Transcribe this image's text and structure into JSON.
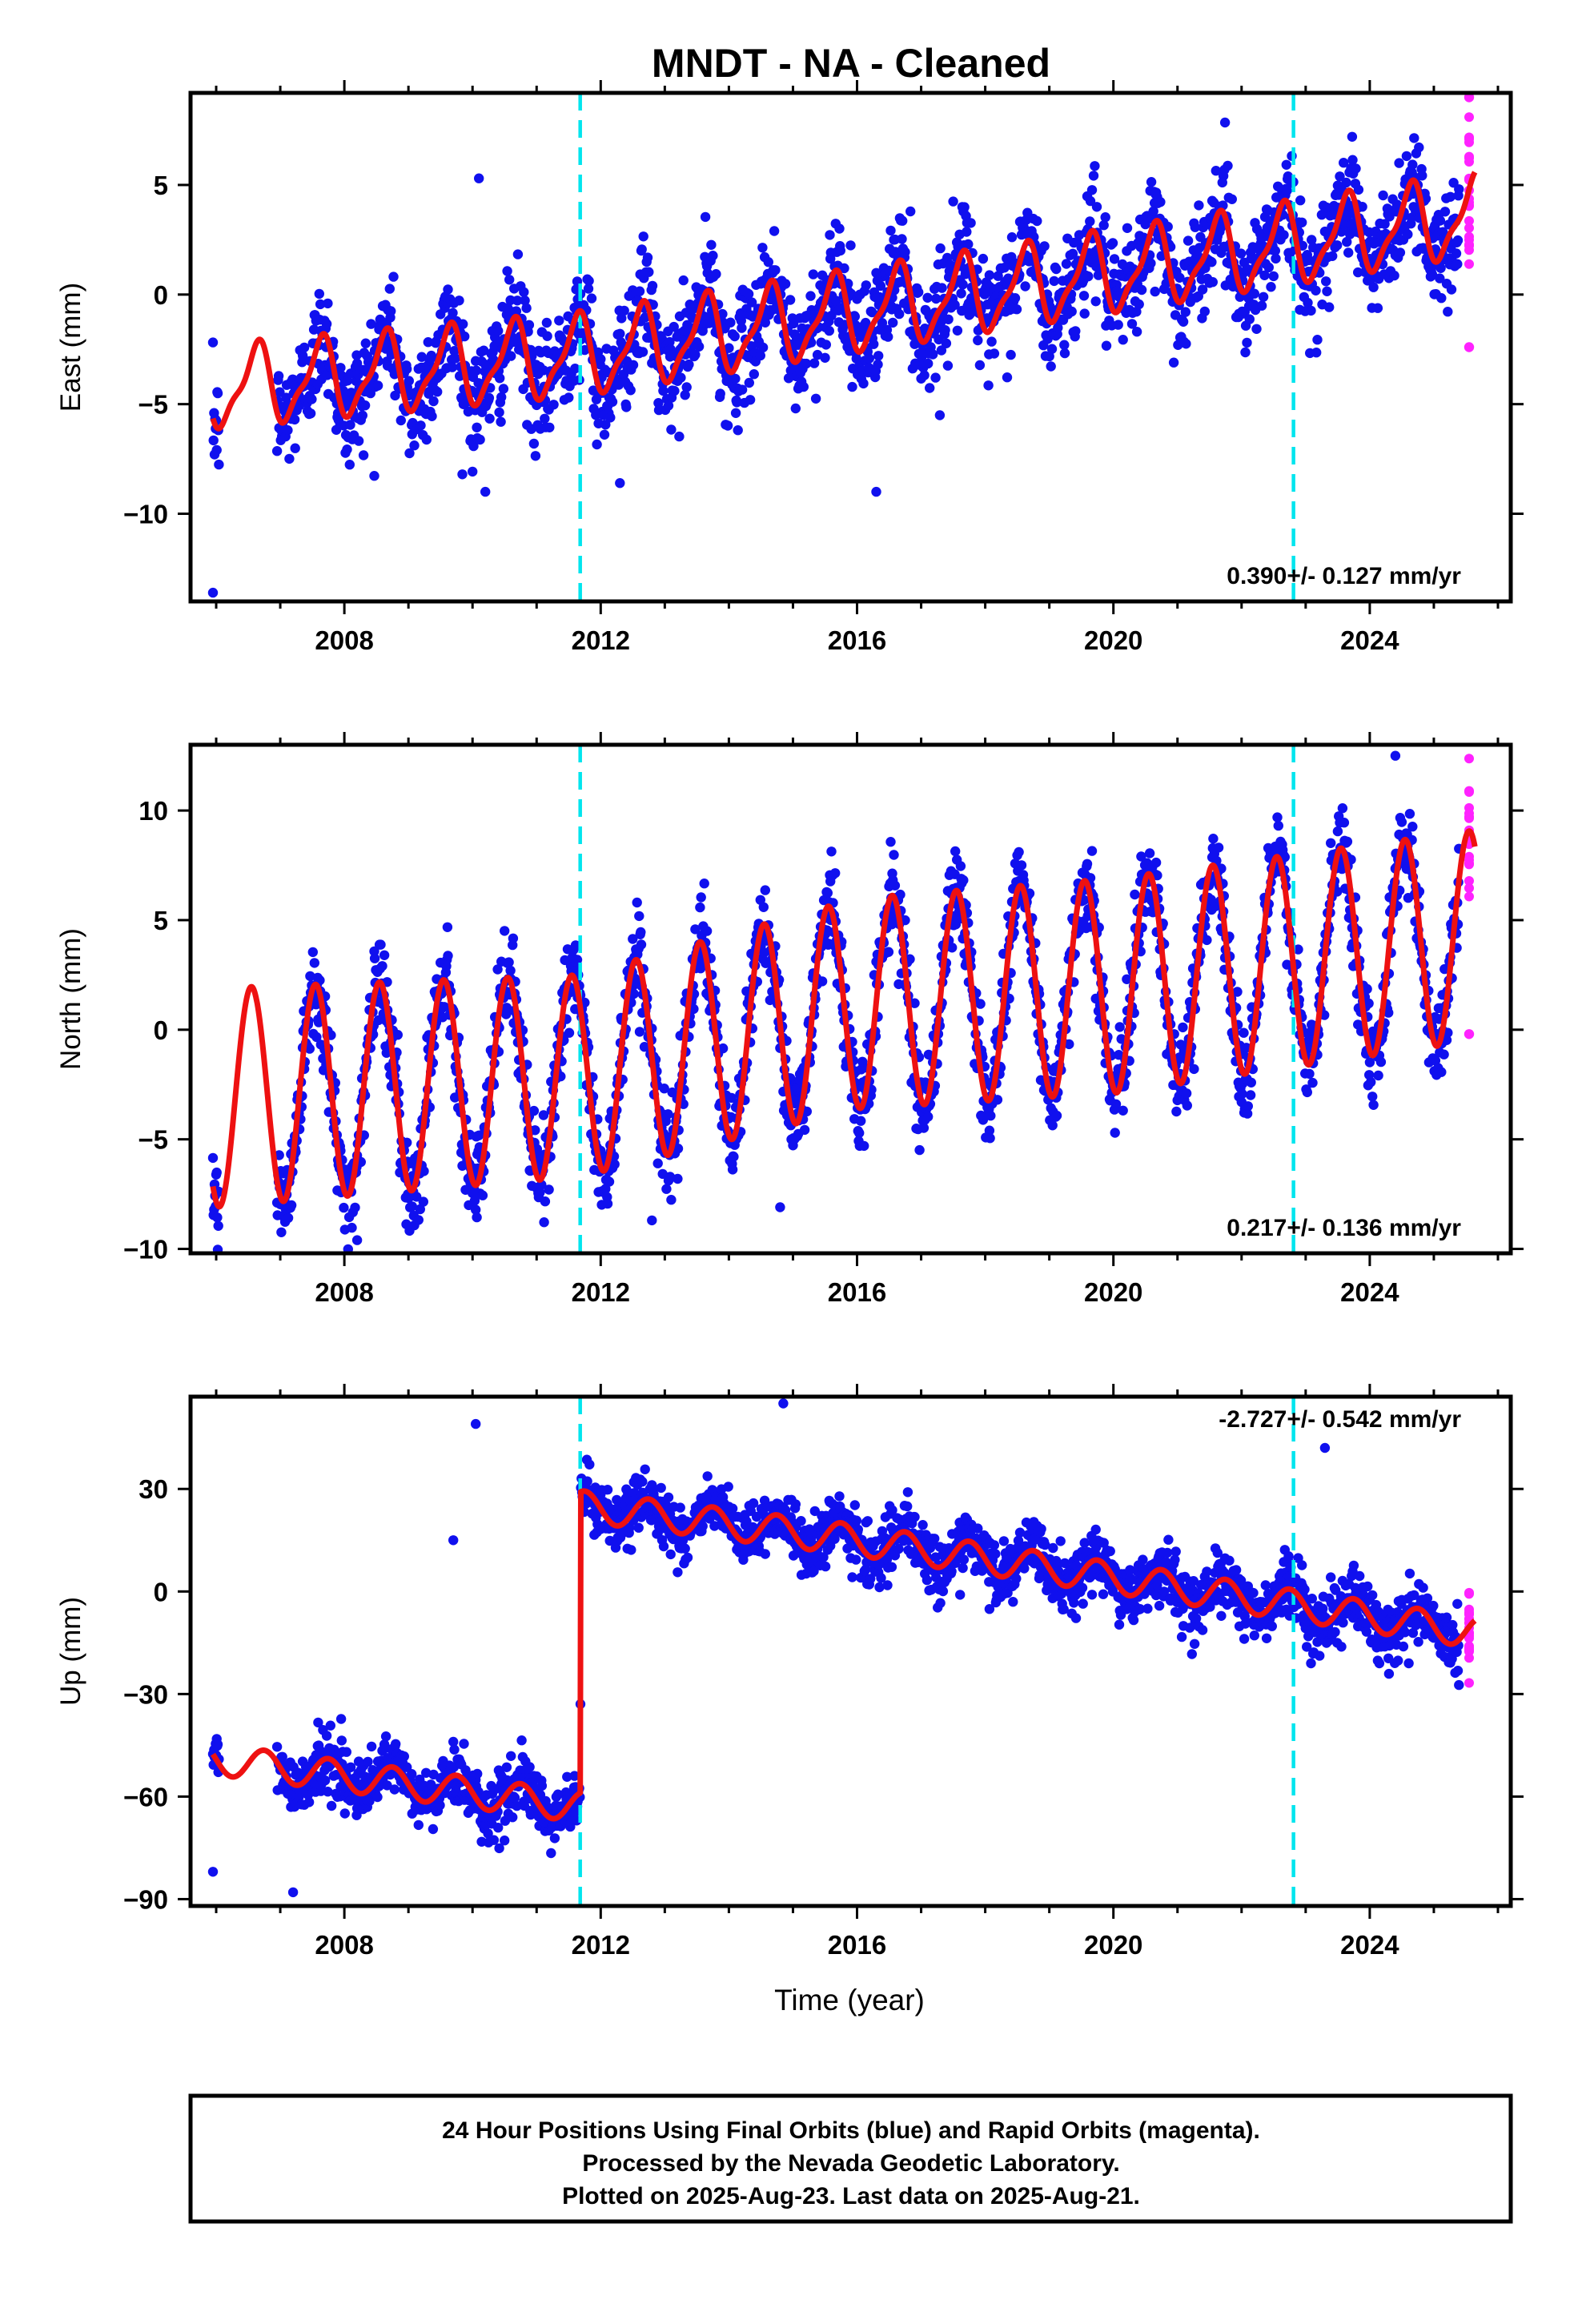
{
  "title": "MNDT  - NA - Cleaned",
  "colors": {
    "final_orbits": "#1010ee",
    "rapid_orbits": "#ff22ff",
    "model": "#ee1111",
    "events": "#00e5ee",
    "frame": "#000000"
  },
  "footer": {
    "line1": "24 Hour Positions Using Final Orbits (blue) and Rapid Orbits (magenta).",
    "line2": "Processed by the Nevada Geodetic Laboratory.",
    "line3": "Plotted on 2025-Aug-23. Last data on 2025-Aug-21."
  },
  "chart_data": [
    {
      "type": "scatter",
      "component": "east",
      "ylabel": "East (mm)",
      "xlabel": "",
      "xlim": [
        2005.6,
        2026.2
      ],
      "ylim": [
        -14,
        9.2
      ],
      "x_ticks": [
        2008,
        2012,
        2016,
        2020,
        2024
      ],
      "x_tick_labels": [
        "2008",
        "2012",
        "2016",
        "2020",
        "2024"
      ],
      "y_ticks": [
        -10,
        -5,
        0,
        5
      ],
      "y_tick_labels": [
        "−10",
        "−5",
        "0",
        "5"
      ],
      "event_lines": [
        2011.68,
        2022.81
      ],
      "rate_label": "0.390+/- 0.127 mm/yr",
      "rate_position": "bottom-right",
      "data_range": [
        2005.95,
        2025.64
      ],
      "rapid_range": [
        2025.4,
        2025.64
      ],
      "model": {
        "velocity_mm_per_yr": 0.39,
        "offset_at_2016": -1.2,
        "annual_amplitude": 1.7,
        "annual_phase_peak": 0.62,
        "semiannual_amplitude": 0.55,
        "trend_kinks": [
          {
            "x": 2005.95,
            "y": -4.3
          },
          {
            "x": 2011.7,
            "y": -2.8
          },
          {
            "x": 2016.0,
            "y": -0.8
          },
          {
            "x": 2020.0,
            "y": 1.0
          },
          {
            "x": 2025.64,
            "y": 3.6
          }
        ]
      },
      "noise_sd": 1.25,
      "outliers": [
        [
          2005.95,
          -13.6
        ],
        [
          2010.1,
          5.3
        ],
        [
          2016.3,
          -9.0
        ],
        [
          2010.2,
          -9.0
        ],
        [
          2012.3,
          -8.6
        ],
        [
          2025.55,
          9.0
        ],
        [
          2025.55,
          -2.4
        ]
      ]
    },
    {
      "type": "scatter",
      "component": "north",
      "ylabel": "North (mm)",
      "xlabel": "",
      "xlim": [
        2005.6,
        2026.2
      ],
      "ylim": [
        -10.2,
        13
      ],
      "x_ticks": [
        2008,
        2012,
        2016,
        2020,
        2024
      ],
      "x_tick_labels": [
        "2008",
        "2012",
        "2016",
        "2020",
        "2024"
      ],
      "y_ticks": [
        -10,
        -5,
        0,
        5,
        10
      ],
      "y_tick_labels": [
        "−10",
        "−5",
        "0",
        "5",
        "10"
      ],
      "event_lines": [
        2011.68,
        2022.81
      ],
      "rate_label": "0.217+/- 0.136 mm/yr",
      "rate_position": "bottom-right",
      "data_range": [
        2005.95,
        2025.64
      ],
      "rapid_range": [
        2025.4,
        2025.64
      ],
      "model": {
        "velocity_mm_per_yr": 0.217,
        "annual_phase_peak": 0.55,
        "semiannual_amplitude": 0.0,
        "trend_kinks": [
          {
            "x": 2005.95,
            "y": -3.1
          },
          {
            "x": 2011.7,
            "y": -2.1
          },
          {
            "x": 2016.0,
            "y": 1.2
          },
          {
            "x": 2020.0,
            "y": 2.0
          },
          {
            "x": 2025.64,
            "y": 4.3
          }
        ],
        "annual_amplitude_segments": [
          {
            "x": 2005.95,
            "a": 5.0
          },
          {
            "x": 2011.7,
            "a": 4.6
          },
          {
            "x": 2016.0,
            "a": 4.8
          },
          {
            "x": 2020.0,
            "a": 4.9
          },
          {
            "x": 2025.64,
            "a": 4.8
          }
        ]
      },
      "noise_sd": 1.05,
      "outliers": [
        [
          2008.2,
          -9.6
        ],
        [
          2012.8,
          -8.7
        ],
        [
          2014.8,
          -8.1
        ],
        [
          2024.4,
          12.5
        ],
        [
          2025.55,
          -0.2
        ]
      ]
    },
    {
      "type": "scatter",
      "component": "up",
      "ylabel": "Up (mm)",
      "xlabel": "Time (year)",
      "xlim": [
        2005.6,
        2026.2
      ],
      "ylim": [
        -92,
        57
      ],
      "x_ticks": [
        2008,
        2012,
        2016,
        2020,
        2024
      ],
      "x_tick_labels": [
        "2008",
        "2012",
        "2016",
        "2020",
        "2024"
      ],
      "y_ticks": [
        -90,
        -60,
        -30,
        0,
        30
      ],
      "y_tick_labels": [
        "−90",
        "−60",
        "−30",
        "0",
        "30"
      ],
      "event_lines": [
        2011.68,
        2022.81
      ],
      "rate_label": "-2.727+/- 0.542 mm/yr",
      "rate_position": "top-right",
      "data_range": [
        2005.95,
        2025.64
      ],
      "rapid_range": [
        2025.4,
        2025.64
      ],
      "model": {
        "velocity_mm_per_yr": -2.727,
        "annual_amplitude": 4.5,
        "annual_phase_peak": 0.75,
        "semiannual_amplitude": 0.0,
        "step": {
          "x": 2011.68,
          "size": 88
        },
        "trend_kinks": [
          {
            "x": 2005.95,
            "y": -49
          },
          {
            "x": 2011.68,
            "y": -63
          },
          {
            "x": 2011.69,
            "y": 25
          },
          {
            "x": 2016.0,
            "y": 15
          },
          {
            "x": 2020.0,
            "y": 4
          },
          {
            "x": 2025.64,
            "y": -12
          }
        ]
      },
      "noise_sd": 4.2,
      "outliers": [
        [
          2009.7,
          15
        ],
        [
          2010.05,
          49
        ],
        [
          2014.85,
          55
        ],
        [
          2023.3,
          42
        ],
        [
          2007.2,
          -88
        ],
        [
          2005.95,
          -82
        ]
      ]
    }
  ]
}
